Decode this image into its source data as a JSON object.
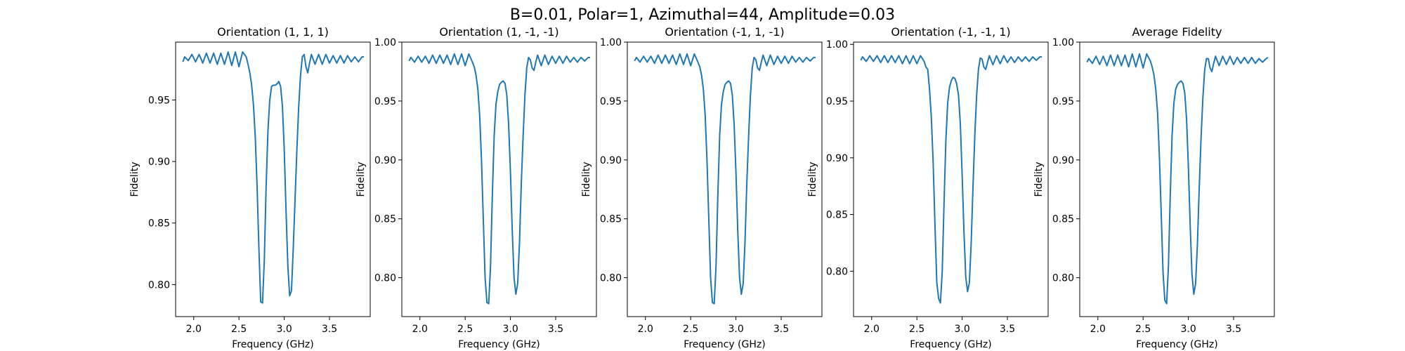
{
  "figure": {
    "title": "B=0.01, Polar=1, Azimuthal=44, Amplitude=0.03",
    "line_color": "#1f77b4"
  },
  "chart_data": [
    {
      "type": "line",
      "title": "Orientation (1, 1, 1)",
      "xlabel": "Frequency (GHz)",
      "ylabel": "Fidelity",
      "xlim": [
        1.8,
        3.95
      ],
      "ylim": [
        0.774,
        0.997
      ],
      "xticks": [
        2.0,
        2.5,
        3.0,
        3.5
      ],
      "xtick_labels": [
        "2.0",
        "2.5",
        "3.0",
        "3.5"
      ],
      "yticks": [
        0.8,
        0.85,
        0.9,
        0.95
      ],
      "ytick_labels": [
        "0.80",
        "0.85",
        "0.90",
        "0.95"
      ],
      "grid": false,
      "series": [
        {
          "x": [
            1.88,
            1.9,
            1.94,
            1.98,
            2.02,
            2.06,
            2.1,
            2.14,
            2.18,
            2.22,
            2.26,
            2.3,
            2.34,
            2.38,
            2.42,
            2.46,
            2.5,
            2.54,
            2.58,
            2.6,
            2.62,
            2.64,
            2.66,
            2.68,
            2.7,
            2.72,
            2.74,
            2.76,
            2.78,
            2.8,
            2.82,
            2.84,
            2.86,
            2.88,
            2.9,
            2.92,
            2.94,
            2.96,
            2.98,
            3.0,
            3.02,
            3.04,
            3.06,
            3.08,
            3.1,
            3.12,
            3.14,
            3.16,
            3.18,
            3.2,
            3.22,
            3.24,
            3.26,
            3.28,
            3.3,
            3.34,
            3.38,
            3.42,
            3.46,
            3.5,
            3.54,
            3.58,
            3.62,
            3.66,
            3.7,
            3.74,
            3.78,
            3.82,
            3.86,
            3.88
          ],
          "y": [
            0.981,
            0.985,
            0.982,
            0.987,
            0.981,
            0.987,
            0.98,
            0.988,
            0.98,
            0.988,
            0.979,
            0.988,
            0.979,
            0.989,
            0.978,
            0.989,
            0.977,
            0.989,
            0.985,
            0.979,
            0.972,
            0.962,
            0.946,
            0.92,
            0.88,
            0.83,
            0.786,
            0.785,
            0.82,
            0.88,
            0.925,
            0.95,
            0.961,
            0.962,
            0.962,
            0.963,
            0.965,
            0.961,
            0.945,
            0.91,
            0.86,
            0.815,
            0.791,
            0.795,
            0.83,
            0.87,
            0.91,
            0.945,
            0.97,
            0.985,
            0.987,
            0.977,
            0.972,
            0.98,
            0.987,
            0.979,
            0.987,
            0.979,
            0.987,
            0.98,
            0.986,
            0.98,
            0.986,
            0.98,
            0.986,
            0.981,
            0.985,
            0.981,
            0.985,
            0.985
          ]
        }
      ]
    },
    {
      "type": "line",
      "title": "Orientation (1, -1, -1)",
      "xlabel": "Frequency (GHz)",
      "ylabel": "Fidelity",
      "xlim": [
        1.8,
        3.95
      ],
      "ylim": [
        0.767,
        1.0
      ],
      "xticks": [
        2.0,
        2.5,
        3.0,
        3.5
      ],
      "xtick_labels": [
        "2.0",
        "2.5",
        "3.0",
        "3.5"
      ],
      "yticks": [
        0.8,
        0.85,
        0.9,
        0.95,
        1.0
      ],
      "ytick_labels": [
        "0.80",
        "0.85",
        "0.90",
        "0.95",
        "1.00"
      ],
      "grid": false,
      "series": [
        {
          "x": [
            1.88,
            1.9,
            1.94,
            1.98,
            2.02,
            2.06,
            2.1,
            2.14,
            2.18,
            2.22,
            2.26,
            2.3,
            2.34,
            2.38,
            2.42,
            2.46,
            2.5,
            2.54,
            2.58,
            2.6,
            2.62,
            2.64,
            2.66,
            2.68,
            2.7,
            2.72,
            2.74,
            2.76,
            2.78,
            2.8,
            2.82,
            2.84,
            2.86,
            2.88,
            2.9,
            2.92,
            2.94,
            2.96,
            2.98,
            3.0,
            3.02,
            3.04,
            3.06,
            3.08,
            3.1,
            3.12,
            3.14,
            3.16,
            3.18,
            3.2,
            3.22,
            3.24,
            3.26,
            3.28,
            3.3,
            3.34,
            3.38,
            3.42,
            3.46,
            3.5,
            3.54,
            3.58,
            3.62,
            3.66,
            3.7,
            3.74,
            3.78,
            3.82,
            3.86,
            3.88
          ],
          "y": [
            0.984,
            0.987,
            0.983,
            0.988,
            0.983,
            0.988,
            0.982,
            0.989,
            0.982,
            0.989,
            0.982,
            0.989,
            0.981,
            0.99,
            0.981,
            0.99,
            0.98,
            0.99,
            0.983,
            0.979,
            0.972,
            0.96,
            0.938,
            0.9,
            0.85,
            0.8,
            0.779,
            0.778,
            0.81,
            0.87,
            0.92,
            0.947,
            0.958,
            0.964,
            0.966,
            0.967,
            0.965,
            0.955,
            0.93,
            0.89,
            0.84,
            0.8,
            0.786,
            0.795,
            0.83,
            0.88,
            0.92,
            0.955,
            0.978,
            0.987,
            0.985,
            0.978,
            0.976,
            0.983,
            0.989,
            0.98,
            0.989,
            0.981,
            0.988,
            0.982,
            0.988,
            0.982,
            0.988,
            0.983,
            0.987,
            0.983,
            0.987,
            0.984,
            0.987,
            0.987
          ]
        }
      ]
    },
    {
      "type": "line",
      "title": "Orientation (-1, 1, -1)",
      "xlabel": "Frequency (GHz)",
      "ylabel": "Fidelity",
      "xlim": [
        1.8,
        3.95
      ],
      "ylim": [
        0.767,
        1.0
      ],
      "xticks": [
        2.0,
        2.5,
        3.0,
        3.5
      ],
      "xtick_labels": [
        "2.0",
        "2.5",
        "3.0",
        "3.5"
      ],
      "yticks": [
        0.8,
        0.85,
        0.9,
        0.95,
        1.0
      ],
      "ytick_labels": [
        "0.80",
        "0.85",
        "0.90",
        "0.95",
        "1.00"
      ],
      "grid": false,
      "series": [
        {
          "x": [
            1.88,
            1.9,
            1.94,
            1.98,
            2.02,
            2.06,
            2.1,
            2.14,
            2.18,
            2.22,
            2.26,
            2.3,
            2.34,
            2.38,
            2.42,
            2.46,
            2.5,
            2.54,
            2.58,
            2.6,
            2.62,
            2.64,
            2.66,
            2.68,
            2.7,
            2.72,
            2.74,
            2.76,
            2.78,
            2.8,
            2.82,
            2.84,
            2.86,
            2.88,
            2.9,
            2.92,
            2.94,
            2.96,
            2.98,
            3.0,
            3.02,
            3.04,
            3.06,
            3.08,
            3.1,
            3.12,
            3.14,
            3.16,
            3.18,
            3.2,
            3.22,
            3.24,
            3.26,
            3.28,
            3.3,
            3.34,
            3.38,
            3.42,
            3.46,
            3.5,
            3.54,
            3.58,
            3.62,
            3.66,
            3.7,
            3.74,
            3.78,
            3.82,
            3.86,
            3.88
          ],
          "y": [
            0.984,
            0.987,
            0.983,
            0.988,
            0.983,
            0.988,
            0.982,
            0.989,
            0.982,
            0.989,
            0.982,
            0.989,
            0.981,
            0.99,
            0.981,
            0.99,
            0.98,
            0.99,
            0.983,
            0.979,
            0.972,
            0.96,
            0.938,
            0.9,
            0.85,
            0.8,
            0.779,
            0.778,
            0.81,
            0.87,
            0.92,
            0.947,
            0.958,
            0.964,
            0.966,
            0.967,
            0.965,
            0.955,
            0.93,
            0.89,
            0.84,
            0.8,
            0.786,
            0.795,
            0.83,
            0.88,
            0.92,
            0.955,
            0.978,
            0.987,
            0.985,
            0.978,
            0.976,
            0.983,
            0.989,
            0.98,
            0.989,
            0.981,
            0.988,
            0.982,
            0.988,
            0.982,
            0.988,
            0.983,
            0.987,
            0.983,
            0.987,
            0.984,
            0.987,
            0.987
          ]
        }
      ]
    },
    {
      "type": "line",
      "title": "Orientation (-1, -1, 1)",
      "xlabel": "Frequency (GHz)",
      "ylabel": "Fidelity",
      "xlim": [
        1.8,
        3.95
      ],
      "ylim": [
        0.76,
        1.002
      ],
      "xticks": [
        2.0,
        2.5,
        3.0,
        3.5
      ],
      "xtick_labels": [
        "2.0",
        "2.5",
        "3.0",
        "3.5"
      ],
      "yticks": [
        0.8,
        0.85,
        0.9,
        0.95,
        1.0
      ],
      "ytick_labels": [
        "0.80",
        "0.85",
        "0.90",
        "0.95",
        "1.00"
      ],
      "grid": false,
      "series": [
        {
          "x": [
            1.88,
            1.9,
            1.94,
            1.98,
            2.02,
            2.06,
            2.1,
            2.14,
            2.18,
            2.22,
            2.26,
            2.3,
            2.34,
            2.38,
            2.42,
            2.46,
            2.5,
            2.54,
            2.58,
            2.6,
            2.62,
            2.64,
            2.66,
            2.68,
            2.7,
            2.72,
            2.74,
            2.76,
            2.78,
            2.8,
            2.82,
            2.84,
            2.86,
            2.88,
            2.9,
            2.92,
            2.94,
            2.96,
            2.98,
            3.0,
            3.02,
            3.04,
            3.06,
            3.08,
            3.1,
            3.12,
            3.14,
            3.16,
            3.18,
            3.2,
            3.22,
            3.24,
            3.26,
            3.28,
            3.3,
            3.34,
            3.38,
            3.42,
            3.46,
            3.5,
            3.54,
            3.58,
            3.62,
            3.66,
            3.7,
            3.74,
            3.78,
            3.82,
            3.86,
            3.88
          ],
          "y": [
            0.986,
            0.989,
            0.985,
            0.99,
            0.985,
            0.99,
            0.984,
            0.99,
            0.984,
            0.99,
            0.984,
            0.99,
            0.983,
            0.99,
            0.983,
            0.99,
            0.983,
            0.99,
            0.985,
            0.98,
            0.978,
            0.96,
            0.935,
            0.895,
            0.84,
            0.79,
            0.776,
            0.772,
            0.8,
            0.86,
            0.915,
            0.948,
            0.962,
            0.968,
            0.971,
            0.97,
            0.965,
            0.955,
            0.93,
            0.885,
            0.835,
            0.795,
            0.782,
            0.79,
            0.825,
            0.875,
            0.92,
            0.955,
            0.978,
            0.988,
            0.987,
            0.98,
            0.978,
            0.984,
            0.99,
            0.982,
            0.99,
            0.983,
            0.99,
            0.984,
            0.989,
            0.984,
            0.989,
            0.985,
            0.989,
            0.985,
            0.989,
            0.986,
            0.989,
            0.989
          ]
        }
      ]
    },
    {
      "type": "line",
      "title": "Average Fidelity",
      "xlabel": "Frequency (GHz)",
      "ylabel": "Fidelity",
      "xlim": [
        1.8,
        3.95
      ],
      "ylim": [
        0.767,
        1.0
      ],
      "xticks": [
        2.0,
        2.5,
        3.0,
        3.5
      ],
      "xtick_labels": [
        "2.0",
        "2.5",
        "3.0",
        "3.5"
      ],
      "yticks": [
        0.8,
        0.85,
        0.9,
        0.95,
        1.0
      ],
      "ytick_labels": [
        "0.80",
        "0.85",
        "0.90",
        "0.95",
        "1.00"
      ],
      "grid": false,
      "series": [
        {
          "x": [
            1.88,
            1.9,
            1.94,
            1.98,
            2.02,
            2.06,
            2.1,
            2.14,
            2.18,
            2.22,
            2.26,
            2.3,
            2.34,
            2.38,
            2.42,
            2.46,
            2.5,
            2.54,
            2.58,
            2.6,
            2.62,
            2.64,
            2.66,
            2.68,
            2.7,
            2.72,
            2.74,
            2.76,
            2.78,
            2.8,
            2.82,
            2.84,
            2.86,
            2.88,
            2.9,
            2.92,
            2.94,
            2.96,
            2.98,
            3.0,
            3.02,
            3.04,
            3.06,
            3.08,
            3.1,
            3.12,
            3.14,
            3.16,
            3.18,
            3.2,
            3.22,
            3.24,
            3.26,
            3.28,
            3.3,
            3.34,
            3.38,
            3.42,
            3.46,
            3.5,
            3.54,
            3.58,
            3.62,
            3.66,
            3.7,
            3.74,
            3.78,
            3.82,
            3.86,
            3.88
          ],
          "y": [
            0.983,
            0.986,
            0.982,
            0.988,
            0.981,
            0.988,
            0.98,
            0.989,
            0.98,
            0.989,
            0.98,
            0.989,
            0.979,
            0.99,
            0.979,
            0.99,
            0.978,
            0.99,
            0.984,
            0.979,
            0.972,
            0.96,
            0.94,
            0.903,
            0.855,
            0.805,
            0.781,
            0.778,
            0.81,
            0.87,
            0.92,
            0.948,
            0.96,
            0.964,
            0.966,
            0.967,
            0.965,
            0.957,
            0.935,
            0.895,
            0.845,
            0.803,
            0.786,
            0.795,
            0.828,
            0.876,
            0.918,
            0.952,
            0.976,
            0.986,
            0.986,
            0.978,
            0.975,
            0.982,
            0.988,
            0.98,
            0.988,
            0.981,
            0.988,
            0.981,
            0.987,
            0.982,
            0.987,
            0.982,
            0.987,
            0.982,
            0.986,
            0.983,
            0.986,
            0.987
          ]
        }
      ]
    }
  ]
}
